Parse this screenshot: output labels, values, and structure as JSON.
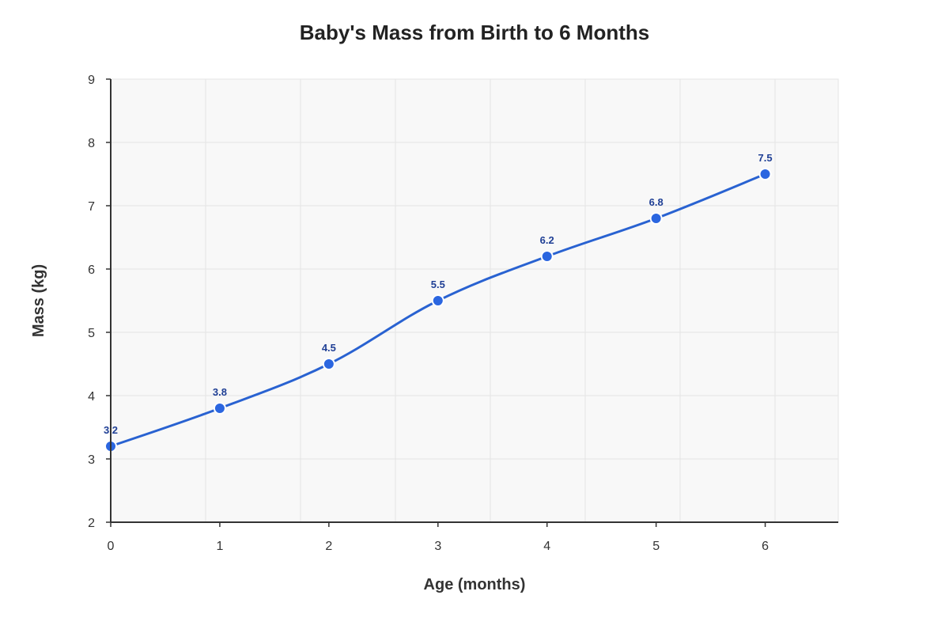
{
  "chart_data": {
    "type": "line",
    "title": "Baby's Mass from Birth to 6 Months",
    "xlabel": "Age (months)",
    "ylabel": "Mass (kg)",
    "x": [
      0,
      1,
      2,
      3,
      4,
      5,
      6
    ],
    "y": [
      3.2,
      3.8,
      4.5,
      5.5,
      6.2,
      6.8,
      7.5
    ],
    "data_labels": [
      "3.2",
      "3.8",
      "4.5",
      "5.5",
      "6.2",
      "6.8",
      "7.5"
    ],
    "xlim": [
      0,
      6.67
    ],
    "ylim": [
      2,
      9
    ],
    "x_ticks": [
      0,
      1,
      2,
      3,
      4,
      5,
      6
    ],
    "y_ticks": [
      2,
      3,
      4,
      5,
      6,
      7,
      8,
      9
    ],
    "x_gridlines": [
      0,
      1,
      2,
      3,
      4,
      5,
      6,
      7,
      8
    ],
    "x_gridline_spacing_label": "months",
    "grid": true,
    "smooth_line": true,
    "colors": {
      "line": "#2962d1",
      "point": "#2b66e0",
      "point_stroke": "#ffffff",
      "data_label": "#1f3f95",
      "plot_background": "#f8f8f8",
      "grid": "#e4e4e4",
      "axis": "#333333"
    }
  }
}
